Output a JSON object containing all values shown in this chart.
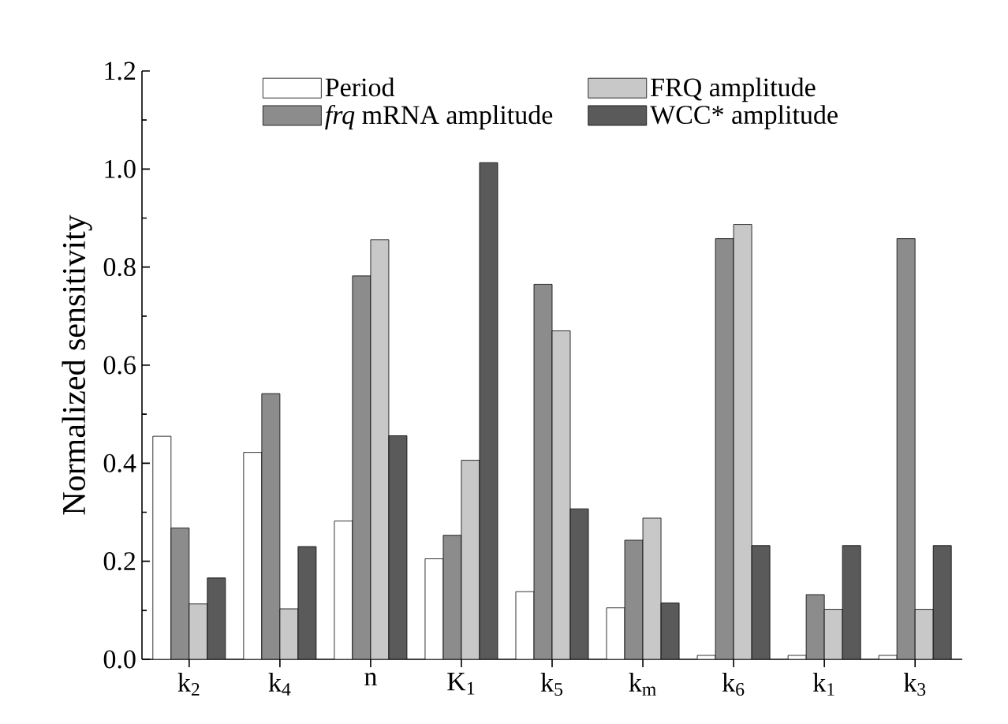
{
  "chart_data": {
    "type": "bar",
    "ylabel": "Normalized sensitivity",
    "categories": [
      "k$_{2}$",
      "k$_{4}$",
      "n",
      "K$_{1}$",
      "k$_{5}$",
      "k$_{m}$",
      "k$_{6}$",
      "k$_{1}$",
      "k$_{3}$"
    ],
    "series": [
      {
        "name": "Period",
        "color": "#ffffff",
        "values": [
          0.455,
          0.422,
          0.282,
          0.205,
          0.138,
          0.105,
          0.008,
          0.008,
          0.008
        ]
      },
      {
        "name": "*frq* mRNA amplitude",
        "color": "#8c8c8c",
        "values": [
          0.268,
          0.542,
          0.782,
          0.253,
          0.765,
          0.243,
          0.858,
          0.132,
          0.858
        ]
      },
      {
        "name": "FRQ amplitude",
        "color": "#c8c8c8",
        "values": [
          0.113,
          0.103,
          0.856,
          0.406,
          0.67,
          0.288,
          0.887,
          0.102,
          0.102
        ]
      },
      {
        "name": "WCC* amplitude",
        "color": "#5a5a5a",
        "values": [
          0.166,
          0.23,
          0.456,
          1.013,
          0.307,
          0.115,
          0.232,
          0.232,
          0.232
        ]
      }
    ],
    "ylim": [
      0,
      1.2
    ],
    "yticks": [
      {
        "value": 0,
        "label": "0.0"
      },
      {
        "value": 0.2,
        "label": "0.2"
      },
      {
        "value": 0.4,
        "label": "0.4"
      },
      {
        "value": 0.6,
        "label": "0.6"
      },
      {
        "value": 0.8,
        "label": "0.8"
      },
      {
        "value": 1.0,
        "label": "1.0"
      },
      {
        "value": 1.2,
        "label": "1.2"
      }
    ],
    "legend": "top",
    "grid": false
  }
}
